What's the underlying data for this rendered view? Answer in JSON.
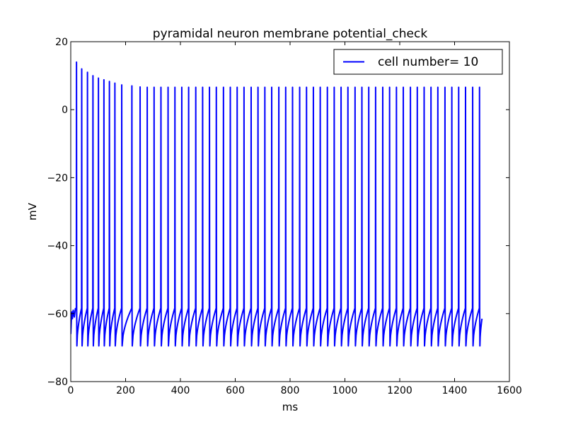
{
  "chart_data": {
    "type": "line",
    "title": "pyramidal neuron membrane potential_check",
    "xlabel": "ms",
    "ylabel": "mV",
    "xlim": [
      0,
      1600
    ],
    "ylim": [
      -80,
      20
    ],
    "xticks": [
      0,
      200,
      400,
      600,
      800,
      1000,
      1200,
      1400,
      1600
    ],
    "xtick_labels": [
      "0",
      "200",
      "400",
      "600",
      "800",
      "1000",
      "1200",
      "1400",
      "1600"
    ],
    "yticks": [
      -80,
      -60,
      -40,
      -20,
      0,
      20
    ],
    "ytick_labels": [
      "−80",
      "−60",
      "−40",
      "−20",
      "0",
      "20"
    ],
    "grid": false,
    "legend_position": "top-right",
    "series": [
      {
        "name": "cell number= 10",
        "color": "#0000ff",
        "description": "regular spiking membrane potential trace over 0-1500 ms",
        "spike_times": [
          21,
          40,
          61,
          81,
          101,
          121,
          141,
          161,
          186,
          223,
          253,
          279,
          304,
          329,
          355,
          380,
          405,
          430,
          456,
          481,
          506,
          531,
          557,
          582,
          607,
          632,
          658,
          683,
          708,
          733,
          759,
          784,
          809,
          835,
          860,
          885,
          910,
          936,
          961,
          986,
          1011,
          1037,
          1062,
          1087,
          1112,
          1138,
          1163,
          1188,
          1213,
          1239,
          1264,
          1289,
          1314,
          1339,
          1365,
          1390,
          1415,
          1440,
          1466,
          1491
        ],
        "spike_peaks": [
          14,
          12,
          11,
          10,
          9.3,
          8.8,
          8.3,
          7.8,
          7.3,
          7,
          6.7,
          6.6,
          6.6,
          6.6,
          6.6,
          6.6,
          6.6,
          6.6,
          6.6,
          6.6,
          6.6,
          6.6,
          6.6,
          6.6,
          6.6,
          6.6,
          6.6,
          6.6,
          6.6,
          6.6,
          6.6,
          6.6,
          6.6,
          6.6,
          6.6,
          6.6,
          6.6,
          6.6,
          6.6,
          6.6,
          6.6,
          6.6,
          6.6,
          6.6,
          6.6,
          6.6,
          6.6,
          6.6,
          6.6,
          6.6,
          6.6,
          6.6,
          6.6,
          6.6,
          6.6,
          6.6,
          6.6,
          6.6,
          6.6,
          6.6
        ],
        "trough_mV": -69.5,
        "threshold_mV": -58.5,
        "start_mV": -66,
        "end_time_ms": 1500,
        "end_mV": -61.5
      }
    ]
  }
}
